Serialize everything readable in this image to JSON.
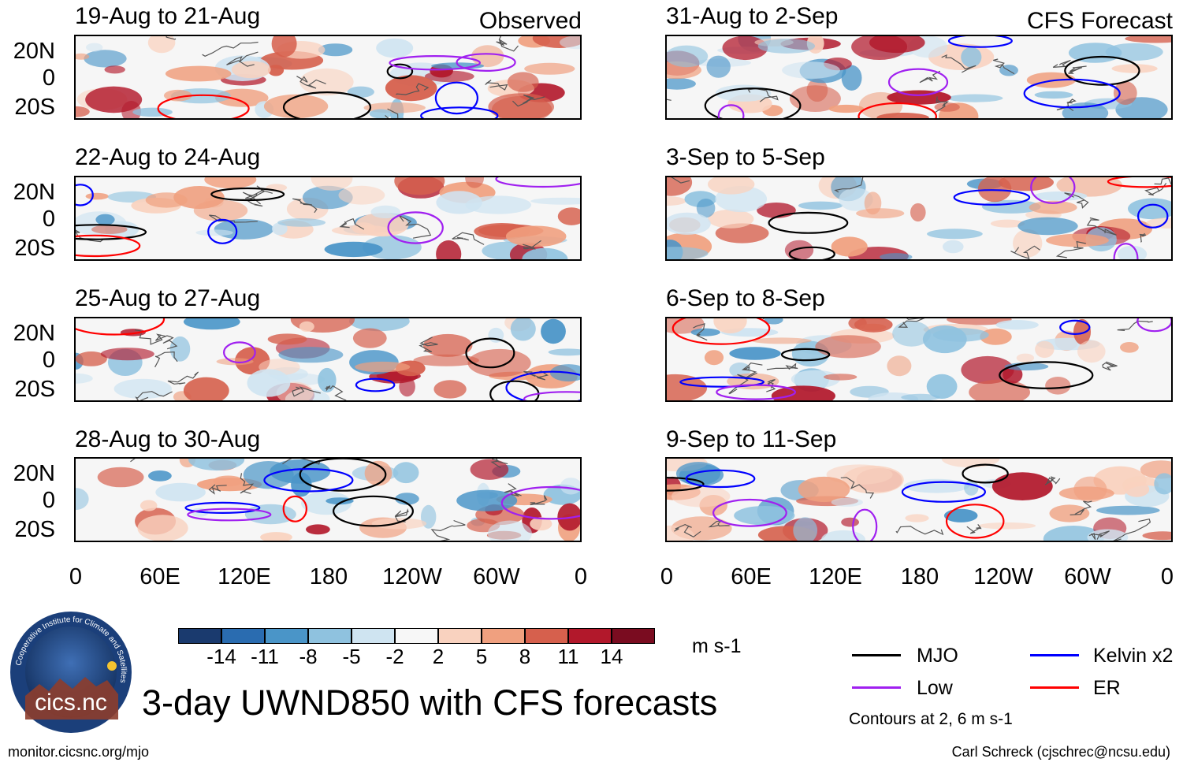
{
  "header": {
    "left_label": "Observed",
    "right_label": "CFS Forecast"
  },
  "panels": {
    "left": [
      "19-Aug to 21-Aug",
      "22-Aug to 24-Aug",
      "25-Aug to 27-Aug",
      "28-Aug to 30-Aug"
    ],
    "right": [
      "31-Aug to 2-Sep",
      "3-Sep to 5-Sep",
      "6-Sep to 8-Sep",
      "9-Sep to 11-Sep"
    ]
  },
  "axes": {
    "lat_labels": [
      "20N",
      "0",
      "20S"
    ],
    "lon_labels": [
      "0",
      "60E",
      "120E",
      "180",
      "120W",
      "60W",
      "0"
    ]
  },
  "colorbar": {
    "ticks": [
      "-14",
      "-11",
      "-8",
      "-5",
      "-2",
      "2",
      "5",
      "8",
      "11",
      "14"
    ],
    "units": "m s-1",
    "colors": [
      "#1a3a6e",
      "#2a6cb0",
      "#4a95c8",
      "#8fc2df",
      "#cfe4f1",
      "#f7f7f7",
      "#f9d2bf",
      "#f0a07f",
      "#d6604d",
      "#b2182b",
      "#7a0c20"
    ]
  },
  "legend": {
    "items": [
      {
        "label": "MJO",
        "color": "#000000"
      },
      {
        "label": "Kelvin x2",
        "color": "#0000ff"
      },
      {
        "label": "Low",
        "color": "#a020f0"
      },
      {
        "label": "ER",
        "color": "#ff0000"
      }
    ],
    "note": "Contours at 2, 6 m s-1"
  },
  "main_title": "3-day UWND850 with CFS forecasts",
  "logo_text": "cics.nc",
  "logo_ring_text": "Cooperative Institute for Climate and Satellites",
  "footer": {
    "left": "monitor.cicsnc.org/mjo",
    "right": "Carl Schreck (cjschrec@ncsu.edu)"
  }
}
